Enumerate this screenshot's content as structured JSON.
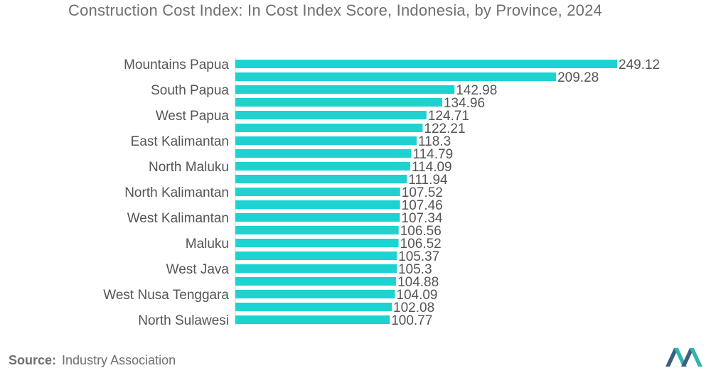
{
  "chart_data": {
    "type": "bar",
    "orientation": "horizontal",
    "title": "Construction Cost Index: In Cost Index Score, Indonesia, by Province, 2024",
    "categories": [
      "Mountains Papua",
      "",
      "South Papua",
      "",
      "West Papua",
      "",
      "East Kalimantan",
      "",
      "North Maluku",
      "",
      "North Kalimantan",
      "",
      "West Kalimantan",
      "",
      "Maluku",
      "",
      "West Java",
      "",
      "West Nusa Tenggara",
      "",
      "North Sulawesi"
    ],
    "values": [
      249.12,
      209.28,
      142.98,
      134.96,
      124.71,
      122.21,
      118.3,
      114.79,
      114.09,
      111.94,
      107.52,
      107.46,
      107.34,
      106.56,
      106.52,
      105.37,
      105.3,
      104.88,
      104.09,
      102.08,
      100.77
    ],
    "value_labels": [
      "249.12",
      "209.28",
      "142.98",
      "134.96",
      "124.71",
      "122.21",
      "118.3",
      "114.79",
      "114.09",
      "111.94",
      "107.52",
      "107.46",
      "107.34",
      "106.56",
      "106.52",
      "105.37",
      "105.3",
      "104.88",
      "104.09",
      "102.08",
      "100.77"
    ],
    "xlim": [
      0,
      249.12
    ],
    "grid": false,
    "legend": "none",
    "bar_color": "#1ed2d2"
  },
  "source": {
    "label": "Source:",
    "text": "Industry Association"
  },
  "colors": {
    "text": "#555555",
    "title": "#6f6f6f",
    "axis": "#cccccc",
    "logo_dark": "#3b5f7c",
    "logo_teal": "#2fb5b0"
  },
  "logo_icon": "mordor-intelligence-logo-icon"
}
